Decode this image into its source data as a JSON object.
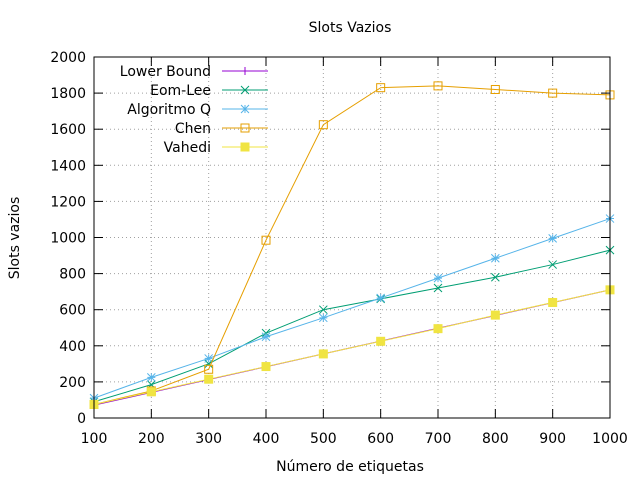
{
  "chart_data": {
    "type": "line",
    "title": "Slots Vazios",
    "xlabel": "Número de etiquetas",
    "ylabel": "Slots vazios",
    "x": [
      100,
      200,
      300,
      400,
      500,
      600,
      700,
      800,
      900,
      1000
    ],
    "xlim": [
      100,
      1000
    ],
    "ylim": [
      0,
      2000
    ],
    "xticks": [
      100,
      200,
      300,
      400,
      500,
      600,
      700,
      800,
      900,
      1000
    ],
    "yticks": [
      0,
      200,
      400,
      600,
      800,
      1000,
      1200,
      1400,
      1600,
      1800,
      2000
    ],
    "grid": true,
    "legend": "top-left",
    "series": [
      {
        "name": "Lower Bound",
        "color": "#9400d3",
        "marker": "plus",
        "values": [
          71,
          142,
          213,
          284,
          355,
          426,
          497,
          568,
          639,
          710
        ]
      },
      {
        "name": "Eom-Lee",
        "color": "#009e73",
        "marker": "cross",
        "values": [
          90,
          185,
          300,
          470,
          600,
          660,
          720,
          780,
          850,
          930
        ]
      },
      {
        "name": "Algoritmo Q",
        "color": "#56b4e9",
        "marker": "star",
        "values": [
          110,
          225,
          330,
          450,
          555,
          665,
          775,
          885,
          995,
          1105
        ]
      },
      {
        "name": "Chen",
        "color": "#e69f00",
        "marker": "square-open",
        "values": [
          75,
          150,
          270,
          985,
          1625,
          1830,
          1840,
          1820,
          1800,
          1790
        ]
      },
      {
        "name": "Vahedi",
        "color": "#f0e442",
        "marker": "square-filled",
        "values": [
          75,
          145,
          215,
          285,
          355,
          425,
          495,
          570,
          640,
          710
        ]
      }
    ]
  }
}
